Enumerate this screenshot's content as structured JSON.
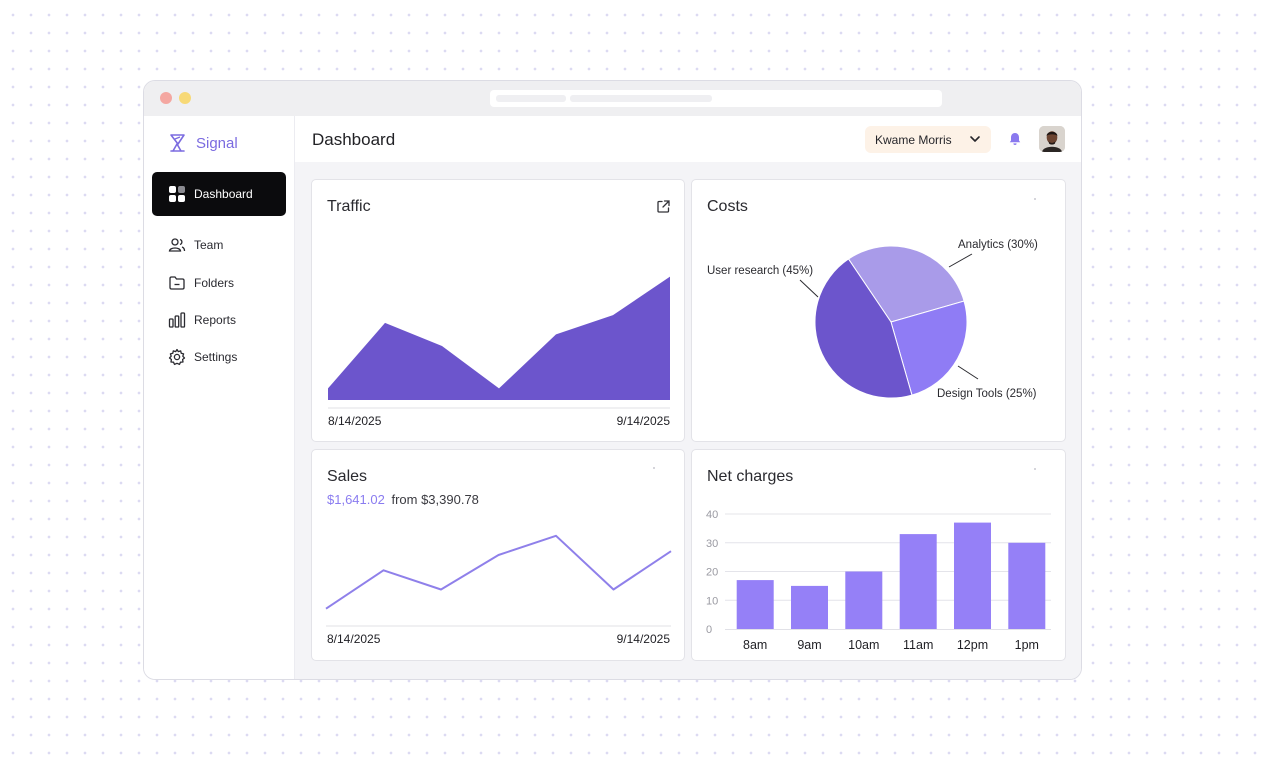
{
  "app": {
    "name": "Signal"
  },
  "sidebar": {
    "items": [
      {
        "label": "Dashboard",
        "icon": "grid-icon",
        "active": true
      },
      {
        "label": "Team",
        "icon": "users-icon"
      },
      {
        "label": "Folders",
        "icon": "folder-icon"
      },
      {
        "label": "Reports",
        "icon": "bar-chart-icon"
      },
      {
        "label": "Settings",
        "icon": "gear-icon"
      }
    ]
  },
  "header": {
    "title": "Dashboard",
    "user_name": "Kwame Morris"
  },
  "colors": {
    "accent": "#7b6be0",
    "traffic": "#6c55cc",
    "sales_line": "#8f80ea",
    "bar": "#9580f7",
    "pie_analytics": "#a99be9",
    "pie_research": "#6c55cc",
    "pie_design": "#8f7cf5"
  },
  "traffic": {
    "title": "Traffic",
    "date_start": "8/14/2025",
    "date_end": "9/14/2025"
  },
  "costs": {
    "title": "Costs"
  },
  "sales": {
    "title": "Sales",
    "amount": "$1,641.02",
    "from_text": "from $3,390.78",
    "date_start": "8/14/2025",
    "date_end": "9/14/2025"
  },
  "net_charges": {
    "title": "Net charges"
  },
  "chart_data": [
    {
      "type": "area",
      "title": "Traffic",
      "x": [
        "8/14/2025",
        "",
        "",
        "",
        "",
        "",
        "9/14/2025"
      ],
      "values": [
        3,
        20,
        14,
        3,
        17,
        22,
        32
      ],
      "ylim": [
        0,
        35
      ]
    },
    {
      "type": "pie",
      "title": "Costs",
      "categories": [
        "Analytics (30%)",
        "Design Tools (25%)",
        "User research (45%)"
      ],
      "values": [
        30,
        25,
        45
      ]
    },
    {
      "type": "line",
      "title": "Sales",
      "x": [
        "8/14/2025",
        "",
        "",
        "",
        "",
        "",
        "9/14/2025"
      ],
      "values": [
        4,
        14,
        9,
        18,
        23,
        9,
        19
      ],
      "ylim": [
        0,
        30
      ]
    },
    {
      "type": "bar",
      "title": "Net charges",
      "categories": [
        "8am",
        "9am",
        "10am",
        "11am",
        "12pm",
        "1pm"
      ],
      "values": [
        17,
        15,
        20,
        33,
        37,
        30
      ],
      "ylim": [
        0,
        40
      ],
      "yticks": [
        0,
        10,
        20,
        30,
        40
      ],
      "grid": true
    }
  ]
}
